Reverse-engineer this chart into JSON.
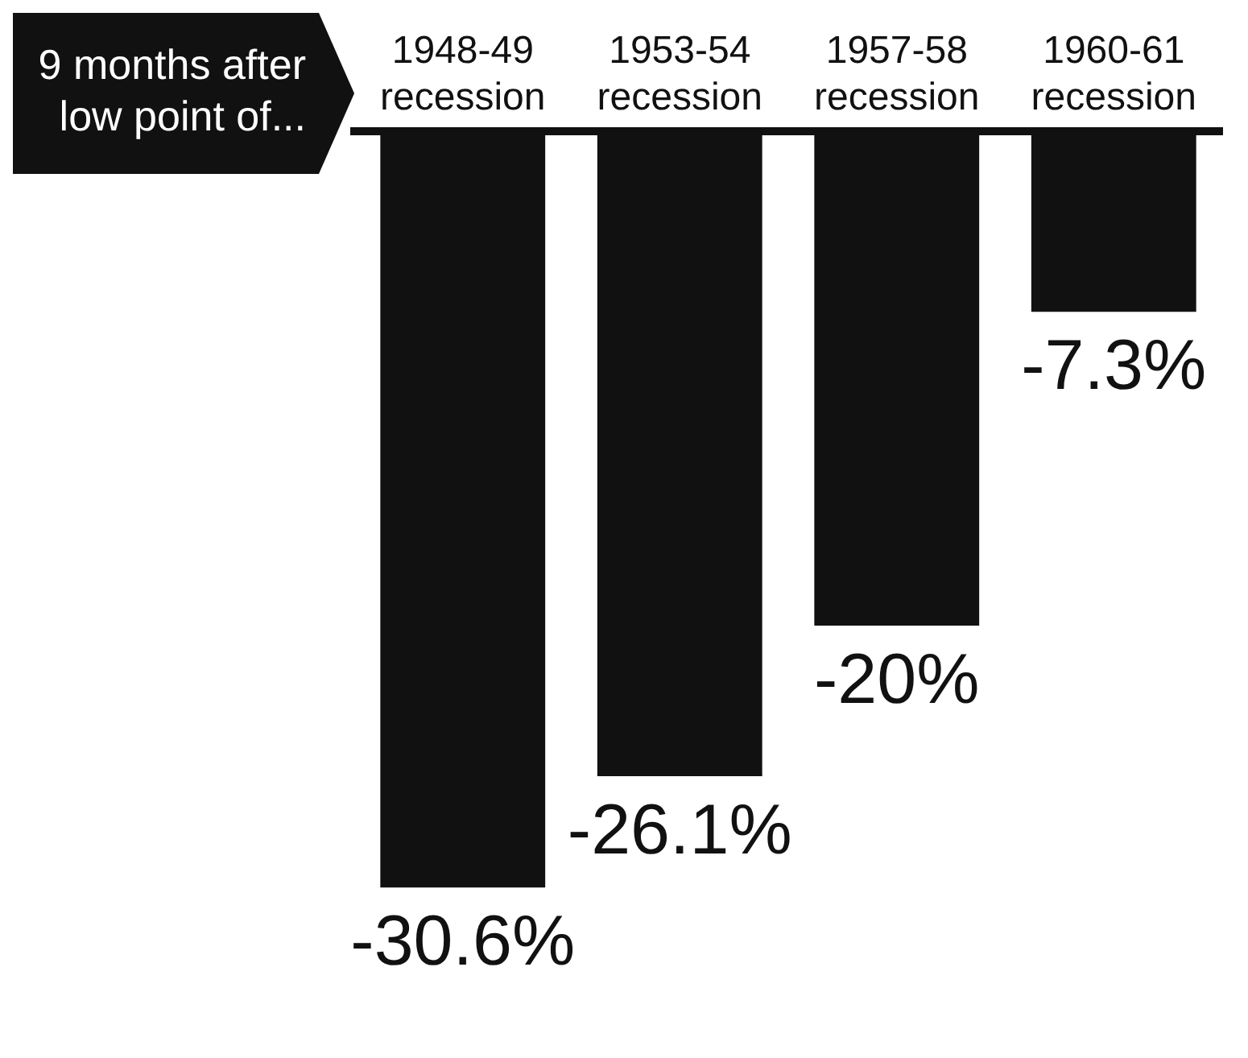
{
  "chart_data": {
    "type": "bar",
    "xlabel": "9 months after low point of...",
    "categories": [
      "1948-49 recession",
      "1953-54 recession",
      "1957-58 recession",
      "1960-61 recession"
    ],
    "values": [
      -30.6,
      -26.1,
      -20,
      -7.3
    ],
    "color": "#111111",
    "value_labels": [
      "-30.6%",
      "-26.1%",
      "-20%",
      "-7.3%"
    ],
    "grid": false,
    "legend": false
  }
}
